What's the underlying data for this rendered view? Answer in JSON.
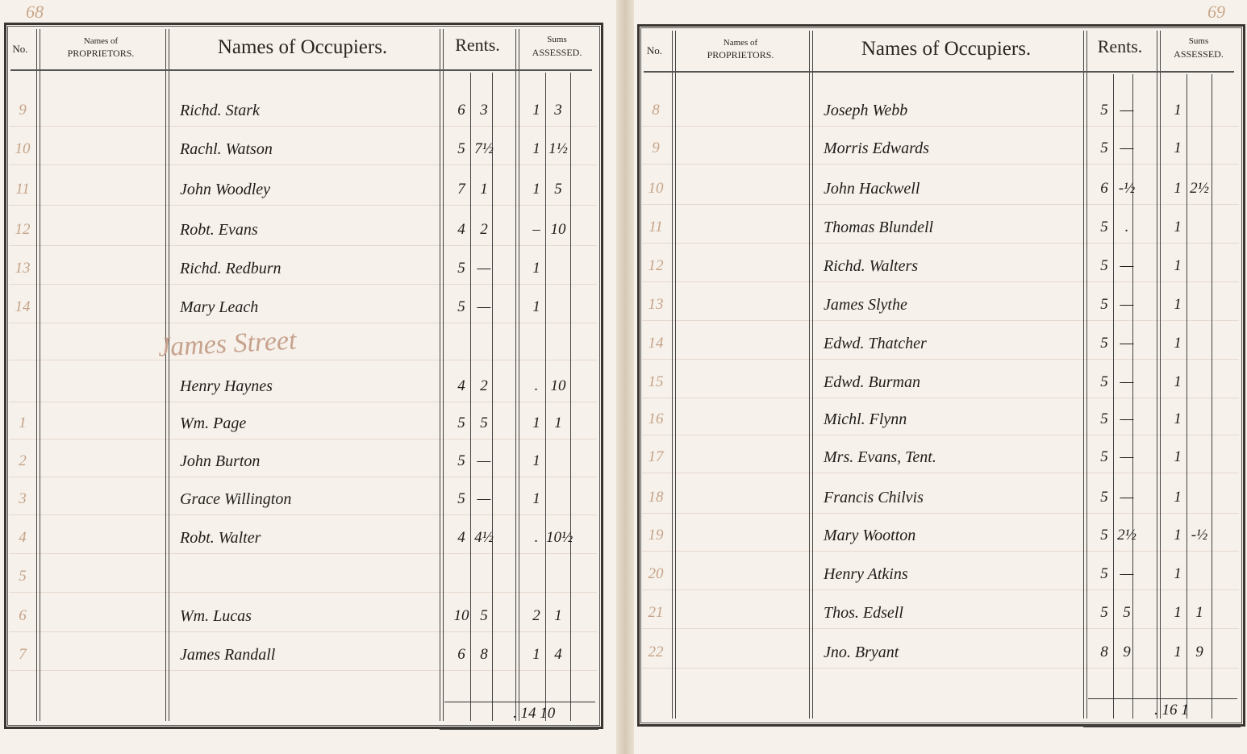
{
  "left_page": {
    "page_number": "68",
    "headers": {
      "no": "No.",
      "proprietors_top": "Names of",
      "proprietors_bottom": "PROPRIETORS.",
      "occupiers": "Names of Occupiers.",
      "rents": "Rents.",
      "sums_top": "Sums",
      "sums_bottom": "ASSESSED."
    },
    "section_heading": "James Street",
    "rows": [
      {
        "no": "9",
        "occupier": "Richd. Stark",
        "rent_l": "6",
        "rent_s": "3",
        "sum_a": "1",
        "sum_b": "3"
      },
      {
        "no": "10",
        "occupier": "Rachl. Watson",
        "rent_l": "5",
        "rent_s": "7½",
        "sum_a": "1",
        "sum_b": "1½"
      },
      {
        "no": "11",
        "occupier": "John Woodley",
        "rent_l": "7",
        "rent_s": "1",
        "sum_a": "1",
        "sum_b": "5"
      },
      {
        "no": "12",
        "occupier": "Robt. Evans",
        "rent_l": "4",
        "rent_s": "2",
        "sum_a": "–",
        "sum_b": "10"
      },
      {
        "no": "13",
        "occupier": "Richd. Redburn",
        "rent_l": "5",
        "rent_s": "—",
        "sum_a": "1",
        "sum_b": ""
      },
      {
        "no": "14",
        "occupier": "Mary Leach",
        "rent_l": "5",
        "rent_s": "—",
        "sum_a": "1",
        "sum_b": ""
      },
      {
        "no": "",
        "occupier": "",
        "rent_l": "",
        "rent_s": "",
        "sum_a": "",
        "sum_b": ""
      },
      {
        "no": "",
        "occupier": "Henry Haynes",
        "rent_l": "4",
        "rent_s": "2",
        "sum_a": ".",
        "sum_b": "10"
      },
      {
        "no": "1",
        "occupier": "Wm. Page",
        "rent_l": "5",
        "rent_s": "5",
        "sum_a": "1",
        "sum_b": "1"
      },
      {
        "no": "2",
        "occupier": "John Burton",
        "rent_l": "5",
        "rent_s": "—",
        "sum_a": "1",
        "sum_b": ""
      },
      {
        "no": "3",
        "occupier": "Grace Willington",
        "rent_l": "5",
        "rent_s": "—",
        "sum_a": "1",
        "sum_b": ""
      },
      {
        "no": "4",
        "occupier": "Robt. Walter",
        "rent_l": "4",
        "rent_s": "4½",
        "sum_a": ".",
        "sum_b": "10½"
      },
      {
        "no": "5",
        "occupier": "",
        "rent_l": "",
        "rent_s": "",
        "sum_a": "",
        "sum_b": ""
      },
      {
        "no": "6",
        "occupier": "Wm. Lucas",
        "rent_l": "10",
        "rent_s": "5",
        "sum_a": "2",
        "sum_b": "1"
      },
      {
        "no": "7",
        "occupier": "James Randall",
        "rent_l": "6",
        "rent_s": "8",
        "sum_a": "1",
        "sum_b": "4"
      }
    ],
    "total": ". 14 10"
  },
  "right_page": {
    "page_number": "69",
    "headers": {
      "no": "No.",
      "proprietors_top": "Names of",
      "proprietors_bottom": "PROPRIETORS.",
      "occupiers": "Names of Occupiers.",
      "rents": "Rents.",
      "sums_top": "Sums",
      "sums_bottom": "ASSESSED."
    },
    "rows": [
      {
        "no": "8",
        "occupier": "Joseph Webb",
        "rent_l": "5",
        "rent_s": "—",
        "sum_a": "1",
        "sum_b": ""
      },
      {
        "no": "9",
        "occupier": "Morris Edwards",
        "rent_l": "5",
        "rent_s": "—",
        "sum_a": "1",
        "sum_b": ""
      },
      {
        "no": "10",
        "occupier": "John Hackwell",
        "rent_l": "6",
        "rent_s": "-½",
        "sum_a": "1",
        "sum_b": "2½"
      },
      {
        "no": "11",
        "occupier": "Thomas Blundell",
        "rent_l": "5",
        "rent_s": ".",
        "sum_a": "1",
        "sum_b": ""
      },
      {
        "no": "12",
        "occupier": "Richd. Walters",
        "rent_l": "5",
        "rent_s": "—",
        "sum_a": "1",
        "sum_b": ""
      },
      {
        "no": "13",
        "occupier": "James Slythe",
        "rent_l": "5",
        "rent_s": "—",
        "sum_a": "1",
        "sum_b": ""
      },
      {
        "no": "14",
        "occupier": "Edwd. Thatcher",
        "rent_l": "5",
        "rent_s": "—",
        "sum_a": "1",
        "sum_b": ""
      },
      {
        "no": "15",
        "occupier": "Edwd. Burman",
        "rent_l": "5",
        "rent_s": "—",
        "sum_a": "1",
        "sum_b": ""
      },
      {
        "no": "16",
        "occupier": "Michl. Flynn",
        "rent_l": "5",
        "rent_s": "—",
        "sum_a": "1",
        "sum_b": ""
      },
      {
        "no": "17",
        "occupier": "Mrs. Evans, Tent.",
        "rent_l": "5",
        "rent_s": "—",
        "sum_a": "1",
        "sum_b": ""
      },
      {
        "no": "18",
        "occupier": "Francis Chilvis",
        "rent_l": "5",
        "rent_s": "—",
        "sum_a": "1",
        "sum_b": ""
      },
      {
        "no": "19",
        "occupier": "Mary Wootton",
        "rent_l": "5",
        "rent_s": "2½",
        "sum_a": "1",
        "sum_b": "-½"
      },
      {
        "no": "20",
        "occupier": "Henry Atkins",
        "rent_l": "5",
        "rent_s": "—",
        "sum_a": "1",
        "sum_b": ""
      },
      {
        "no": "21",
        "occupier": "Thos. Edsell",
        "rent_l": "5",
        "rent_s": "5",
        "sum_a": "1",
        "sum_b": "1"
      },
      {
        "no": "22",
        "occupier": "Jno. Bryant",
        "rent_l": "8",
        "rent_s": "9",
        "sum_a": "1",
        "sum_b": "9"
      }
    ],
    "total": ". 16 1"
  },
  "colors": {
    "paper": "#f6f1ea",
    "ink": "#1f1c19",
    "faded_ink": "#c5a389",
    "rule": "#3a3530"
  }
}
